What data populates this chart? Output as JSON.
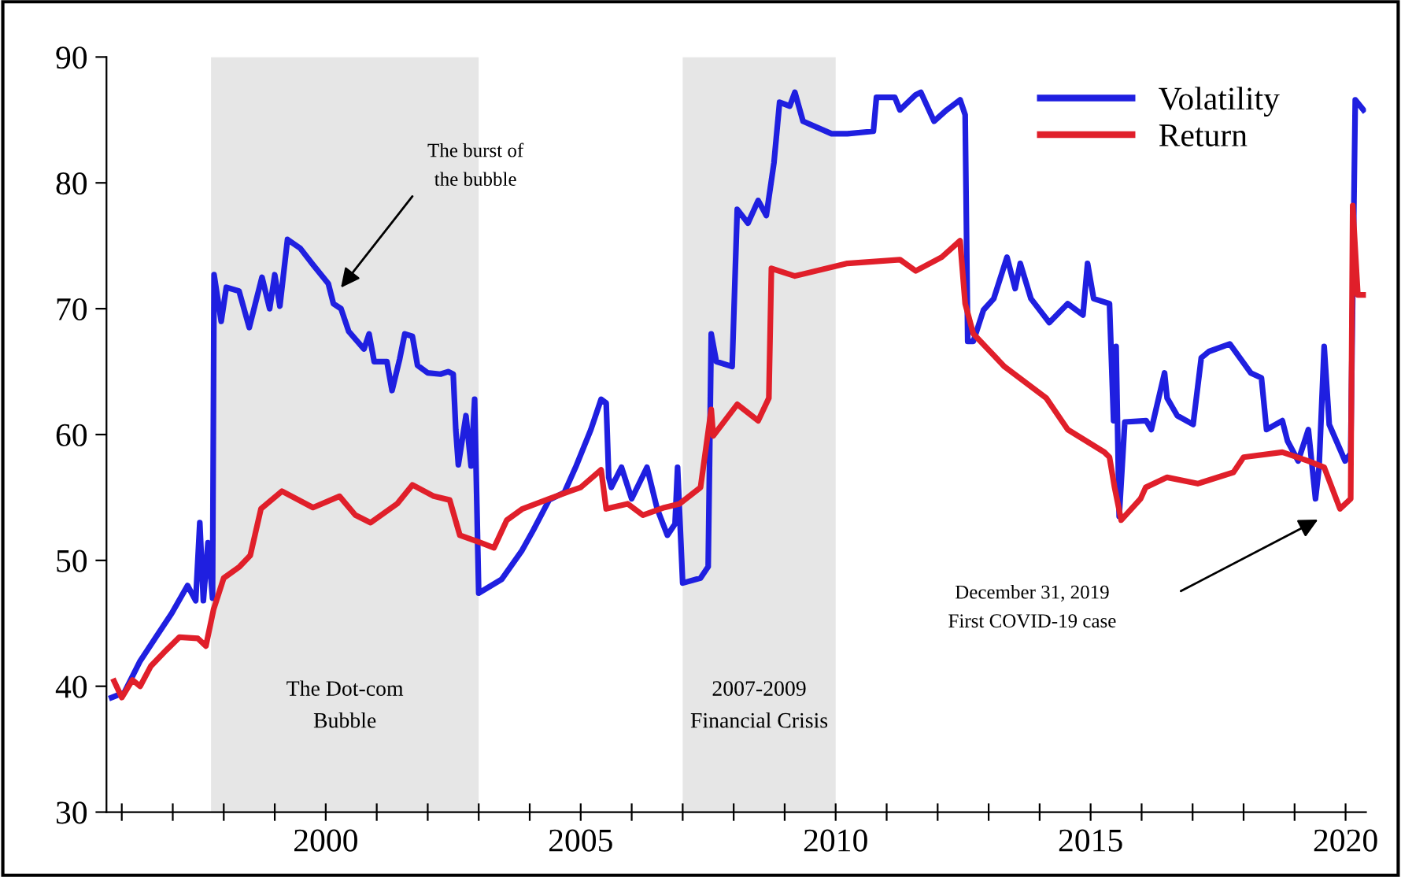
{
  "chart_data": {
    "type": "line",
    "xlim": [
      1995.7,
      2020.4
    ],
    "ylim": [
      30,
      90
    ],
    "xticks": [
      {
        "value": 1996,
        "label": null
      },
      {
        "value": 1997,
        "label": null
      },
      {
        "value": 1998,
        "label": null
      },
      {
        "value": 1999,
        "label": null
      },
      2000,
      {
        "value": 2001,
        "label": null
      },
      {
        "value": 2002,
        "label": null
      },
      {
        "value": 2003,
        "label": null
      },
      {
        "value": 2004,
        "label": null
      },
      2005,
      {
        "value": 2006,
        "label": null
      },
      {
        "value": 2007,
        "label": null
      },
      {
        "value": 2008,
        "label": null
      },
      {
        "value": 2009,
        "label": null
      },
      2010,
      {
        "value": 2011,
        "label": null
      },
      {
        "value": 2012,
        "label": null
      },
      {
        "value": 2013,
        "label": null
      },
      {
        "value": 2014,
        "label": null
      },
      2015,
      {
        "value": 2016,
        "label": null
      },
      {
        "value": 2017,
        "label": null
      },
      {
        "value": 2018,
        "label": null
      },
      {
        "value": 2019,
        "label": null
      },
      2020
    ],
    "yticks": [
      30,
      40,
      50,
      60,
      70,
      80,
      90
    ],
    "grid": false,
    "legend": "top right",
    "marker": "none",
    "line_style": "solid",
    "series": [
      {
        "name": "Volatility",
        "color": "#1f1fe0",
        "x": [
          1995.8,
          1996.05,
          1996.36,
          1996.67,
          1996.98,
          1997.29,
          1997.45,
          1997.53,
          1997.6,
          1997.69,
          1997.78,
          1997.81,
          1997.95,
          1998.05,
          1998.3,
          1998.5,
          1998.75,
          1998.9,
          1999.0,
          1999.1,
          1999.25,
          1999.5,
          1999.75,
          2000.05,
          2000.15,
          2000.3,
          2000.45,
          2000.75,
          2000.85,
          2000.95,
          2001.2,
          2001.3,
          2001.45,
          2001.55,
          2001.7,
          2001.8,
          2002.0,
          2002.25,
          2002.4,
          2002.5,
          2002.55,
          2002.6,
          2002.75,
          2002.85,
          2002.92,
          2003.0,
          2003.45,
          2003.85,
          2004.07,
          2004.38,
          2004.68,
          2004.9,
          2005.2,
          2005.4,
          2005.5,
          2005.55,
          2005.6,
          2005.8,
          2006.0,
          2006.3,
          2006.5,
          2006.7,
          2006.85,
          2006.9,
          2007.0,
          2007.35,
          2007.5,
          2007.56,
          2007.66,
          2007.97,
          2008.07,
          2008.28,
          2008.48,
          2008.64,
          2008.79,
          2008.9,
          2009.1,
          2009.2,
          2009.36,
          2009.92,
          2010.23,
          2010.74,
          2010.8,
          2011.16,
          2011.26,
          2011.57,
          2011.67,
          2011.93,
          2012.18,
          2012.44,
          2012.54,
          2012.59,
          2012.7,
          2012.9,
          2013.1,
          2013.36,
          2013.52,
          2013.62,
          2013.83,
          2014.19,
          2014.55,
          2014.85,
          2014.94,
          2015.06,
          2015.37,
          2015.45,
          2015.5,
          2015.56,
          2015.67,
          2016.09,
          2016.19,
          2016.45,
          2016.5,
          2016.7,
          2017.01,
          2017.17,
          2017.32,
          2017.73,
          2018.14,
          2018.35,
          2018.45,
          2018.76,
          2018.86,
          2019.07,
          2019.27,
          2019.41,
          2019.48,
          2019.58,
          2019.68,
          2019.99,
          2020.1,
          2020.19,
          2020.35
        ],
        "values": [
          39.1,
          39.5,
          42,
          43.9,
          45.8,
          48,
          46.8,
          53,
          46.8,
          51.4,
          47,
          72.7,
          69,
          71.7,
          71.4,
          68.5,
          72.5,
          70,
          72.7,
          70.2,
          75.5,
          74.8,
          73.5,
          72,
          70.4,
          70,
          68.2,
          66.8,
          68,
          65.8,
          65.8,
          63.5,
          66,
          68,
          67.8,
          65.5,
          64.9,
          64.8,
          65,
          64.8,
          60.4,
          57.6,
          61.5,
          57.5,
          62.8,
          47.4,
          48.5,
          50.8,
          52.4,
          54.8,
          55.4,
          57.4,
          60.4,
          62.8,
          62.5,
          56.6,
          55.8,
          57.4,
          54.9,
          57.4,
          54.1,
          52,
          52.9,
          57.4,
          48.2,
          48.6,
          49.5,
          68,
          65.8,
          65.4,
          77.9,
          76.8,
          78.6,
          77.4,
          81.6,
          86.4,
          86.1,
          87.2,
          84.9,
          83.9,
          83.9,
          84.1,
          86.8,
          86.8,
          85.8,
          87,
          87.2,
          84.9,
          85.8,
          86.6,
          85.4,
          67.4,
          67.4,
          69.9,
          70.8,
          74.1,
          71.6,
          73.6,
          70.8,
          68.9,
          70.4,
          69.5,
          73.6,
          70.8,
          70.4,
          61.1,
          67,
          53.5,
          61,
          61.1,
          60.4,
          64.9,
          62.9,
          61.5,
          60.8,
          66.1,
          66.6,
          67.2,
          64.9,
          64.5,
          60.4,
          61.1,
          59.5,
          57.9,
          60.4,
          54.9,
          57.4,
          67,
          60.8,
          57.9,
          58.5,
          86.6,
          85.8
        ]
      },
      {
        "name": "Return",
        "color": "#e01f2a",
        "x": [
          1995.85,
          1996.0,
          1996.21,
          1996.36,
          1996.57,
          1996.88,
          1997.13,
          1997.49,
          1997.65,
          1997.8,
          1998.0,
          1998.31,
          1998.52,
          1998.73,
          1999.14,
          1999.75,
          2000.27,
          2000.58,
          2000.88,
          2001.4,
          2001.7,
          2002.12,
          2002.43,
          2002.63,
          2003.04,
          2003.3,
          2003.55,
          2003.86,
          2004.38,
          2004.79,
          2005.0,
          2005.4,
          2005.5,
          2005.92,
          2006.22,
          2006.64,
          2006.94,
          2007.35,
          2007.56,
          2007.6,
          2008.07,
          2008.48,
          2008.69,
          2008.74,
          2009.2,
          2010.23,
          2011.26,
          2011.57,
          2012.08,
          2012.44,
          2012.54,
          2012.7,
          2013.31,
          2014.13,
          2014.55,
          2015.27,
          2015.37,
          2015.47,
          2015.6,
          2015.98,
          2016.08,
          2016.5,
          2017.1,
          2017.8,
          2018.0,
          2018.76,
          2019.27,
          2019.58,
          2019.89,
          2020.1,
          2020.14,
          2020.24,
          2020.35
        ],
        "values": [
          40.4,
          39.1,
          40.5,
          40,
          41.6,
          42.9,
          43.9,
          43.8,
          43.2,
          46.1,
          48.6,
          49.5,
          50.4,
          54.1,
          55.5,
          54.2,
          55.1,
          53.6,
          53,
          54.5,
          56,
          55.1,
          54.8,
          52,
          51.4,
          51,
          53.2,
          54.1,
          54.9,
          55.5,
          55.8,
          57.2,
          54.1,
          54.5,
          53.6,
          54.2,
          54.5,
          55.8,
          62,
          59.9,
          62.4,
          61.1,
          62.9,
          73.2,
          72.6,
          73.6,
          73.9,
          73,
          74.1,
          75.4,
          70.4,
          68,
          65.4,
          62.9,
          60.4,
          58.6,
          58.2,
          55.8,
          53.2,
          54.9,
          55.8,
          56.6,
          56.1,
          57,
          58.2,
          58.6,
          57.9,
          57.4,
          54.1,
          54.9,
          78.2,
          71.1,
          71.1
        ]
      }
    ],
    "bands": [
      {
        "axis": "x",
        "from": 1997.75,
        "to": 2003,
        "label": "The Dot-com\nBubble",
        "color": "#e6e6e6"
      },
      {
        "axis": "x",
        "from": 2007,
        "to": 2010,
        "label": "2007-2009\nFinancial Crisis",
        "color": "#e6e6e6"
      }
    ],
    "annotations": [
      "The burst of\nthe bubble",
      "December 31, 2019\nFirst COVID-19 case"
    ]
  }
}
